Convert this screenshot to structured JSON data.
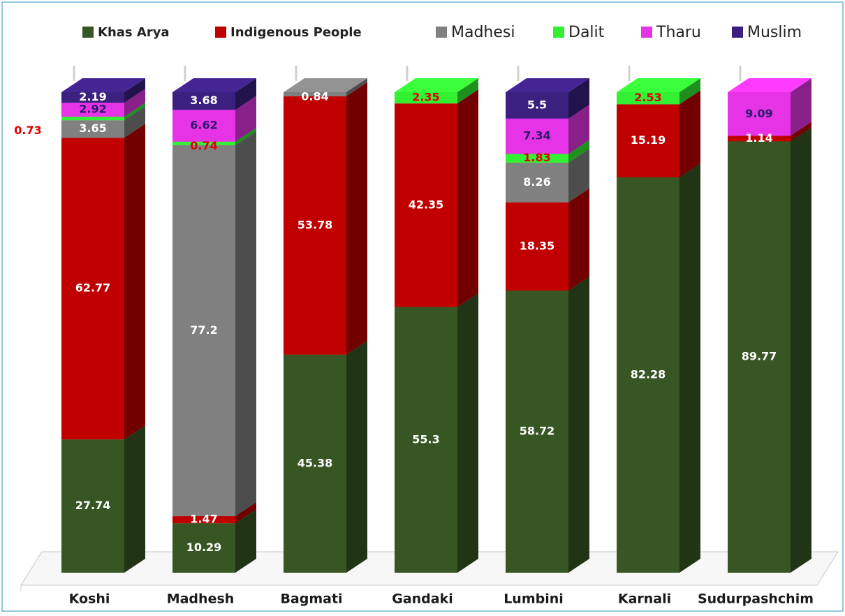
{
  "chart_data": {
    "type": "stacked-bar-3d",
    "categories": [
      "Koshi",
      "Madhesh",
      "Bagmati",
      "Gandaki",
      "Lumbini",
      "Karnali",
      "Sudurpashchim"
    ],
    "ylim": [
      0,
      100
    ],
    "series": [
      {
        "name": "Khas Arya",
        "color": "#375623",
        "values": [
          27.74,
          10.29,
          45.38,
          55.3,
          58.72,
          82.28,
          89.77
        ]
      },
      {
        "name": "Indigenous People",
        "color": "#c00000",
        "values": [
          62.77,
          1.47,
          53.78,
          42.35,
          18.35,
          15.19,
          1.14
        ]
      },
      {
        "name": "Madhesi",
        "color": "#808080",
        "values": [
          3.65,
          77.2,
          0.84,
          null,
          8.26,
          null,
          null
        ]
      },
      {
        "name": "Dalit",
        "color": "#33f033",
        "values": [
          0.73,
          0.74,
          null,
          2.35,
          1.83,
          2.53,
          null
        ]
      },
      {
        "name": "Tharu",
        "color": "#e533e5",
        "values": [
          2.92,
          6.62,
          null,
          null,
          7.34,
          null,
          9.09
        ]
      },
      {
        "name": "Muslim",
        "color": "#3b2080",
        "values": [
          2.19,
          3.68,
          null,
          null,
          5.5,
          null,
          null
        ]
      }
    ]
  }
}
